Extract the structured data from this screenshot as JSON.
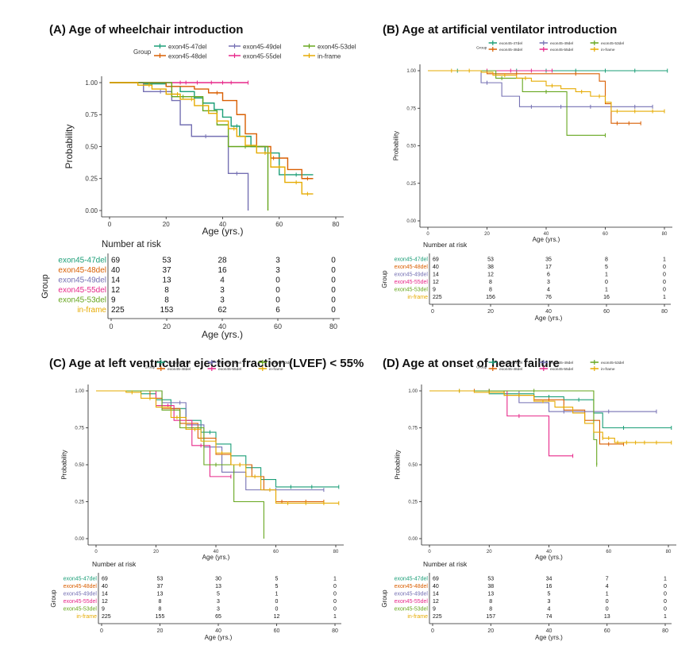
{
  "colors": {
    "exon45-47del": "#1b9e77",
    "exon45-48del": "#d95f02",
    "exon45-49del": "#7570b3",
    "exon45-55del": "#e7298a",
    "exon45-53del": "#66a61e",
    "in-frame": "#e6ab02"
  },
  "legend": {
    "title": "Group",
    "row1": [
      "exon45-47del",
      "exon45-49del",
      "exon45-53del"
    ],
    "row2": [
      "exon45-48del",
      "exon45-55del",
      "in-frame"
    ]
  },
  "risk_title": "Number at risk",
  "risk_axis_label": "Group",
  "chart_data": [
    {
      "panel": "A",
      "type": "line",
      "title": "(A)  Age of wheelchair introduction",
      "xlabel": "Age (yrs.)",
      "ylabel": "Probability",
      "xlim": [
        0,
        80
      ],
      "ylim": [
        0,
        1
      ],
      "xticks": [
        0,
        20,
        40,
        60,
        80
      ],
      "yticks": [
        "0.00",
        "0.25",
        "0.50",
        "0.75",
        "1.00"
      ],
      "series": [
        {
          "name": "exon45-47del",
          "x": [
            0,
            12,
            20,
            25,
            30,
            33,
            37,
            40,
            43,
            46,
            50,
            55,
            60,
            68,
            72
          ],
          "y": [
            1,
            0.99,
            0.97,
            0.93,
            0.88,
            0.84,
            0.79,
            0.73,
            0.66,
            0.58,
            0.5,
            0.45,
            0.28,
            0.28,
            0.28
          ],
          "censor": [
            15,
            30,
            45,
            62,
            66
          ]
        },
        {
          "name": "exon45-48del",
          "x": [
            0,
            20,
            30,
            35,
            40,
            45,
            48,
            52,
            57,
            63,
            68,
            72
          ],
          "y": [
            1,
            0.97,
            0.95,
            0.92,
            0.86,
            0.75,
            0.6,
            0.5,
            0.41,
            0.32,
            0.25,
            0.25
          ],
          "censor": [
            22,
            38,
            58,
            70
          ]
        },
        {
          "name": "exon45-49del",
          "x": [
            0,
            12,
            22,
            25,
            29,
            36,
            42,
            49
          ],
          "y": [
            1,
            0.93,
            0.86,
            0.67,
            0.58,
            0.58,
            0.29,
            0
          ],
          "censor": [
            18,
            34,
            45
          ]
        },
        {
          "name": "exon45-55del",
          "x": [
            0,
            49
          ],
          "y": [
            1,
            1
          ],
          "censor": [
            25,
            27,
            31,
            36,
            40,
            43,
            49
          ]
        },
        {
          "name": "exon45-53del",
          "x": [
            0,
            22,
            33,
            38,
            42,
            45,
            56
          ],
          "y": [
            1,
            0.89,
            0.78,
            0.67,
            0.5,
            0.5,
            0
          ],
          "censor": [
            26,
            48
          ]
        },
        {
          "name": "in-frame",
          "x": [
            0,
            10,
            15,
            20,
            25,
            30,
            35,
            38,
            42,
            45,
            48,
            52,
            57,
            62,
            68,
            72
          ],
          "y": [
            1,
            0.98,
            0.95,
            0.91,
            0.87,
            0.82,
            0.76,
            0.7,
            0.64,
            0.58,
            0.51,
            0.45,
            0.34,
            0.22,
            0.13,
            0.13
          ],
          "censor": [
            14,
            24,
            29,
            38,
            44,
            55,
            60,
            66,
            70
          ]
        }
      ],
      "risk": {
        "ticks": [
          0,
          20,
          40,
          60,
          80
        ],
        "rows": {
          "exon45-47del": [
            69,
            53,
            28,
            3,
            0
          ],
          "exon45-48del": [
            40,
            37,
            16,
            3,
            0
          ],
          "exon45-49del": [
            14,
            13,
            4,
            0,
            0
          ],
          "exon45-55del": [
            12,
            8,
            3,
            0,
            0
          ],
          "exon45-53del": [
            9,
            8,
            3,
            0,
            0
          ],
          "in-frame": [
            225,
            153,
            62,
            6,
            0
          ]
        }
      }
    },
    {
      "panel": "B",
      "type": "line",
      "title": "(B)  Age at artificial ventilator introduction",
      "xlabel": "Age (yrs.)",
      "ylabel": "Probability",
      "xlim": [
        0,
        80
      ],
      "ylim": [
        0,
        1
      ],
      "xticks": [
        0,
        20,
        40,
        60,
        80
      ],
      "yticks": [
        "0.00",
        "0.25",
        "0.50",
        "0.75",
        "1.00"
      ],
      "series": [
        {
          "name": "exon45-47del",
          "x": [
            0,
            81
          ],
          "y": [
            1,
            1
          ],
          "censor": [
            10,
            20,
            30,
            40,
            50,
            60,
            70,
            81
          ]
        },
        {
          "name": "exon45-48del",
          "x": [
            0,
            20,
            40,
            58,
            60,
            62,
            72
          ],
          "y": [
            1,
            0.98,
            0.98,
            0.93,
            0.78,
            0.65,
            0.65
          ],
          "censor": [
            30,
            50,
            64,
            68,
            72
          ]
        },
        {
          "name": "exon45-49del",
          "x": [
            0,
            18,
            25,
            31,
            76
          ],
          "y": [
            1,
            0.92,
            0.83,
            0.76,
            0.76
          ],
          "censor": [
            20,
            35,
            45,
            55,
            70,
            76
          ]
        },
        {
          "name": "exon45-55del",
          "x": [
            0,
            42
          ],
          "y": [
            1,
            1
          ],
          "censor": [
            20,
            28,
            35,
            42
          ]
        },
        {
          "name": "exon45-53del",
          "x": [
            0,
            23,
            32,
            47,
            60
          ],
          "y": [
            1,
            0.95,
            0.86,
            0.57,
            0.57
          ],
          "censor": [
            25,
            40,
            60
          ]
        },
        {
          "name": "in-frame",
          "x": [
            0,
            18,
            22,
            30,
            35,
            40,
            45,
            50,
            55,
            60,
            62,
            80
          ],
          "y": [
            1,
            0.99,
            0.97,
            0.95,
            0.93,
            0.9,
            0.88,
            0.86,
            0.83,
            0.79,
            0.73,
            0.73
          ],
          "censor": [
            8,
            14,
            26,
            33,
            42,
            52,
            58,
            64,
            70,
            76,
            80
          ]
        }
      ],
      "risk": {
        "ticks": [
          0,
          20,
          40,
          60,
          80
        ],
        "rows": {
          "exon45-47del": [
            69,
            53,
            35,
            8,
            1
          ],
          "exon45-48del": [
            40,
            38,
            17,
            5,
            0
          ],
          "exon45-49del": [
            14,
            12,
            6,
            1,
            0
          ],
          "exon45-55del": [
            12,
            8,
            3,
            0,
            0
          ],
          "exon45-53del": [
            9,
            8,
            4,
            1,
            0
          ],
          "in-frame": [
            225,
            156,
            76,
            16,
            1
          ]
        }
      }
    },
    {
      "panel": "C",
      "type": "line",
      "title": "(C)  Age at left ventricular ejection fraction (LVEF) < 55%",
      "xlabel": "Age (yrs.)",
      "ylabel": "Probability",
      "xlim": [
        0,
        80
      ],
      "ylim": [
        0,
        1
      ],
      "xticks": [
        0,
        20,
        40,
        60,
        80
      ],
      "yticks": [
        "0.00",
        "0.25",
        "0.50",
        "0.75",
        "1.00"
      ],
      "series": [
        {
          "name": "exon45-47del",
          "x": [
            0,
            15,
            20,
            25,
            30,
            35,
            40,
            45,
            50,
            55,
            60,
            81
          ],
          "y": [
            1,
            0.98,
            0.94,
            0.88,
            0.8,
            0.72,
            0.64,
            0.56,
            0.48,
            0.4,
            0.35,
            0.35
          ],
          "censor": [
            22,
            38,
            52,
            65,
            72,
            81
          ]
        },
        {
          "name": "exon45-48del",
          "x": [
            0,
            18,
            22,
            28,
            34,
            40,
            45,
            52,
            56,
            60,
            76
          ],
          "y": [
            1,
            0.95,
            0.88,
            0.78,
            0.68,
            0.57,
            0.5,
            0.42,
            0.33,
            0.25,
            0.25
          ],
          "censor": [
            25,
            48,
            62,
            70,
            76
          ]
        },
        {
          "name": "exon45-49del",
          "x": [
            0,
            22,
            30,
            36,
            42,
            50,
            76
          ],
          "y": [
            1,
            0.92,
            0.77,
            0.62,
            0.45,
            0.33,
            0.33
          ],
          "censor": [
            28,
            46,
            60,
            76
          ]
        },
        {
          "name": "exon45-55del",
          "x": [
            0,
            20,
            26,
            32,
            38,
            45
          ],
          "y": [
            1,
            0.9,
            0.8,
            0.63,
            0.42,
            0.42
          ],
          "censor": [
            24,
            35,
            45
          ]
        },
        {
          "name": "exon45-53del",
          "x": [
            0,
            22,
            28,
            36,
            46,
            56
          ],
          "y": [
            1,
            0.87,
            0.75,
            0.5,
            0.25,
            0
          ],
          "censor": [
            30,
            40
          ]
        },
        {
          "name": "in-frame",
          "x": [
            0,
            10,
            15,
            20,
            25,
            30,
            35,
            40,
            45,
            50,
            55,
            60,
            81
          ],
          "y": [
            1,
            0.99,
            0.95,
            0.89,
            0.82,
            0.74,
            0.66,
            0.58,
            0.5,
            0.42,
            0.33,
            0.24,
            0.24
          ],
          "censor": [
            12,
            18,
            27,
            33,
            42,
            48,
            53,
            58,
            64,
            70,
            76,
            81
          ]
        }
      ],
      "risk": {
        "ticks": [
          0,
          20,
          40,
          60,
          80
        ],
        "rows": {
          "exon45-47del": [
            69,
            53,
            30,
            5,
            1
          ],
          "exon45-48del": [
            40,
            37,
            13,
            5,
            0
          ],
          "exon45-49del": [
            14,
            13,
            5,
            1,
            0
          ],
          "exon45-55del": [
            12,
            8,
            3,
            0,
            0
          ],
          "exon45-53del": [
            9,
            8,
            3,
            0,
            0
          ],
          "in-frame": [
            225,
            155,
            65,
            12,
            1
          ]
        }
      }
    },
    {
      "panel": "D",
      "type": "line",
      "title": "(D)  Age at onset of heart failure",
      "xlabel": "Age (yrs.)",
      "ylabel": "Probability",
      "xlim": [
        0,
        80
      ],
      "ylim": [
        0,
        1
      ],
      "xticks": [
        0,
        20,
        40,
        60,
        80
      ],
      "yticks": [
        "0.00",
        "0.25",
        "0.50",
        "0.75",
        "1.00"
      ],
      "series": [
        {
          "name": "exon45-47del",
          "x": [
            0,
            20,
            35,
            45,
            55,
            58,
            81
          ],
          "y": [
            1,
            0.98,
            0.96,
            0.94,
            0.85,
            0.75,
            0.75
          ],
          "censor": [
            10,
            25,
            40,
            50,
            65,
            81
          ]
        },
        {
          "name": "exon45-48del",
          "x": [
            0,
            25,
            35,
            45,
            52,
            57,
            65
          ],
          "y": [
            1,
            0.97,
            0.94,
            0.87,
            0.8,
            0.64,
            0.64
          ],
          "censor": [
            15,
            30,
            40,
            60,
            65
          ]
        },
        {
          "name": "exon45-49del",
          "x": [
            0,
            30,
            40,
            55,
            76
          ],
          "y": [
            1,
            0.92,
            0.86,
            0.86,
            0.86
          ],
          "censor": [
            20,
            45,
            60,
            76
          ]
        },
        {
          "name": "exon45-55del",
          "x": [
            0,
            26,
            34,
            40,
            48
          ],
          "y": [
            1,
            0.83,
            0.83,
            0.56,
            0.56
          ],
          "censor": [
            20,
            30,
            48
          ]
        },
        {
          "name": "exon45-53del",
          "x": [
            0,
            48,
            55,
            56
          ],
          "y": [
            1,
            1,
            0.67,
            0.5
          ],
          "censor": [
            20,
            35,
            56
          ]
        },
        {
          "name": "in-frame",
          "x": [
            0,
            15,
            25,
            35,
            42,
            48,
            52,
            55,
            58,
            62,
            81
          ],
          "y": [
            1,
            0.99,
            0.97,
            0.93,
            0.89,
            0.85,
            0.78,
            0.72,
            0.68,
            0.65,
            0.65
          ],
          "censor": [
            10,
            20,
            30,
            38,
            45,
            58,
            60,
            63,
            66,
            69,
            72,
            76,
            81
          ]
        }
      ],
      "risk": {
        "ticks": [
          0,
          20,
          40,
          60,
          80
        ],
        "rows": {
          "exon45-47del": [
            69,
            53,
            34,
            7,
            1
          ],
          "exon45-48del": [
            40,
            38,
            16,
            4,
            0
          ],
          "exon45-49del": [
            14,
            13,
            5,
            1,
            0
          ],
          "exon45-55del": [
            12,
            8,
            3,
            0,
            0
          ],
          "exon45-53del": [
            9,
            8,
            4,
            0,
            0
          ],
          "in-frame": [
            225,
            157,
            74,
            13,
            1
          ]
        }
      }
    }
  ]
}
